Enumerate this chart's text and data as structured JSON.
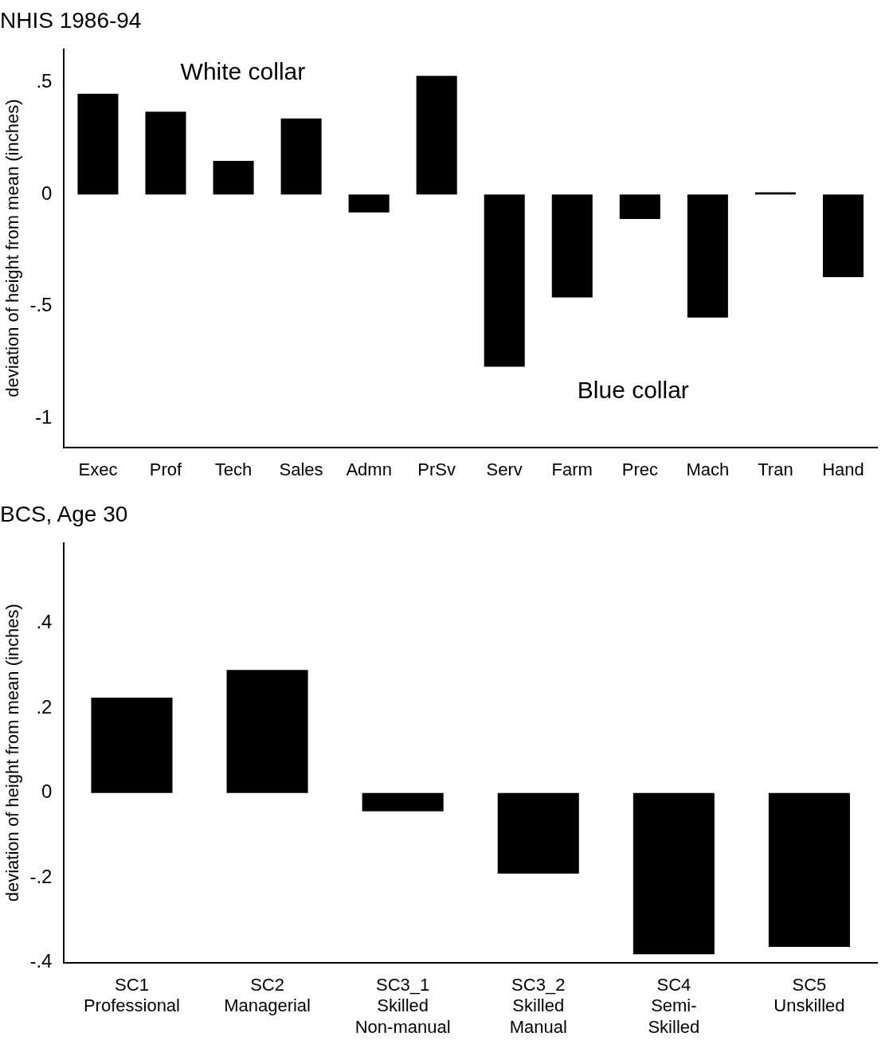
{
  "chart_data": [
    {
      "type": "bar",
      "title": "NHIS 1986-94",
      "ylabel": "deviation of height from mean (inches)",
      "categories": [
        "Exec",
        "Prof",
        "Tech",
        "Sales",
        "Admn",
        "PrSv",
        "Serv",
        "Farm",
        "Prec",
        "Mach",
        "Tran",
        "Hand"
      ],
      "values": [
        0.45,
        0.37,
        0.15,
        0.34,
        -0.08,
        0.53,
        -0.77,
        -0.46,
        -0.11,
        -0.55,
        0.01,
        -0.37
      ],
      "color": "#000000",
      "ylim": [
        -1.13,
        0.65
      ],
      "yticks": [
        {
          "value": -1,
          "label": "-1"
        },
        {
          "value": -0.5,
          "label": "-.5"
        },
        0,
        {
          "value": 0.5,
          "label": ".5"
        }
      ],
      "annotations": [
        "White collar",
        "Blue collar"
      ],
      "grid": false,
      "legend": false
    },
    {
      "type": "bar",
      "title": "BCS, Age 30",
      "ylabel": "deviation of height from mean (inches)",
      "categories": [
        "SC1\nProfessional",
        "SC2\nManagerial",
        "SC3_1\nSkilled\nNon-manual",
        "SC3_2\nSkilled\nManual",
        "SC4\nSemi-\nSkilled",
        "SC5\nUnskilled"
      ],
      "values": [
        0.225,
        0.29,
        -0.043,
        -0.19,
        -0.38,
        -0.363
      ],
      "color": "#000000",
      "ylim": [
        -0.4,
        0.59
      ],
      "yticks": [
        {
          "value": -0.4,
          "label": "-.4"
        },
        {
          "value": -0.2,
          "label": "-.2"
        },
        0,
        {
          "value": 0.2,
          "label": ".2"
        },
        {
          "value": 0.4,
          "label": ".4"
        }
      ],
      "grid": false,
      "legend": false
    }
  ]
}
